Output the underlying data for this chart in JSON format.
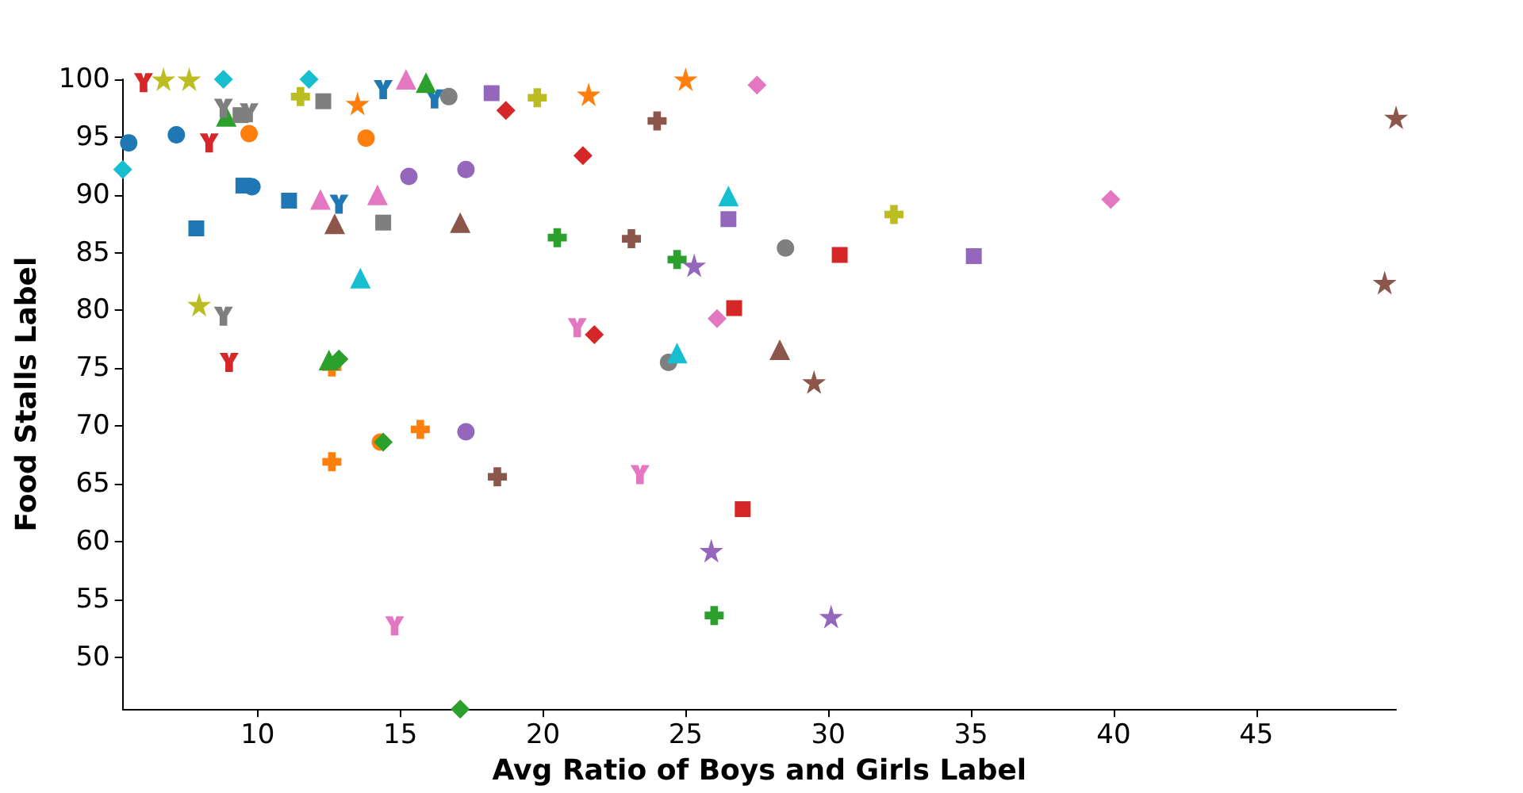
{
  "chart_data": {
    "type": "scatter",
    "xlabel": "Avg Ratio of Boys and Girls Label",
    "ylabel": "Food Stalls Label",
    "xlim": [
      5.27,
      49.9
    ],
    "ylim": [
      45.5,
      100
    ],
    "xticks": [
      10,
      15,
      20,
      25,
      30,
      35,
      40,
      45
    ],
    "yticks": [
      50,
      55,
      60,
      65,
      70,
      75,
      80,
      85,
      90,
      95,
      100
    ],
    "series": [
      {
        "color": "#1f77b4",
        "marker": "circle",
        "x": [
          5.48,
          7.15,
          9.8
        ],
        "values": [
          94.5,
          95.2,
          90.7
        ]
      },
      {
        "color": "#1f77b4",
        "marker": "square",
        "x": [
          7.85,
          9.5,
          11.1
        ],
        "values": [
          87.1,
          90.8,
          89.5
        ]
      },
      {
        "color": "#1f77b4",
        "x": [
          12.85,
          14.4,
          16.2
        ],
        "values": [
          89.2,
          99.1,
          98.3
        ]
      },
      {
        "color": "#ff7f0e",
        "marker": "circle",
        "x": [
          9.7,
          13.8,
          14.3
        ],
        "values": [
          95.3,
          94.9,
          68.6
        ]
      },
      {
        "color": "#ff7f0e",
        "marker": "star",
        "x": [
          13.5,
          21.6,
          25.0
        ],
        "values": [
          97.9,
          98.7,
          100
        ]
      },
      {
        "color": "#ff7f0e",
        "marker": "cross",
        "x": [
          12.6,
          15.7,
          12.6
        ],
        "values": [
          66.9,
          69.7,
          75.1
        ]
      },
      {
        "color": "#2ca02c",
        "marker": "triangle",
        "x": [
          8.9,
          12.5,
          15.9
        ],
        "values": [
          96.8,
          75.7,
          99.7
        ]
      },
      {
        "color": "#2ca02c",
        "marker": "diamond",
        "x": [
          12.85,
          14.4,
          17.1
        ],
        "values": [
          75.8,
          68.6,
          45.5
        ]
      },
      {
        "color": "#2ca02c",
        "marker": "cross",
        "x": [
          20.5,
          24.7,
          26.0
        ],
        "values": [
          86.3,
          84.4,
          53.6
        ]
      },
      {
        "color": "#d62728",
        "x": [
          6.0,
          8.3,
          9.0
        ],
        "values": [
          99.7,
          94.5,
          75.5
        ]
      },
      {
        "color": "#d62728",
        "marker": "diamond",
        "x": [
          18.7,
          21.4,
          21.8
        ],
        "values": [
          97.3,
          93.4,
          77.9
        ]
      },
      {
        "color": "#d62728",
        "marker": "square",
        "x": [
          30.4,
          26.7,
          27.0
        ],
        "values": [
          84.8,
          80.2,
          62.8
        ]
      },
      {
        "color": "#9467bd",
        "marker": "circle",
        "x": [
          15.3,
          17.3,
          17.3
        ],
        "values": [
          91.6,
          92.2,
          69.5
        ]
      },
      {
        "color": "#9467bd",
        "marker": "square",
        "x": [
          18.2,
          26.5,
          35.1
        ],
        "values": [
          98.8,
          87.9,
          84.7
        ]
      },
      {
        "color": "#9467bd",
        "marker": "star",
        "x": [
          25.3,
          25.9,
          30.1
        ],
        "values": [
          83.9,
          59.2,
          53.5
        ]
      },
      {
        "color": "#8c564b",
        "marker": "triangle",
        "x": [
          12.7,
          17.1,
          28.3
        ],
        "values": [
          87.5,
          87.6,
          76.6
        ]
      },
      {
        "color": "#8c564b",
        "marker": "cross",
        "x": [
          24.0,
          23.1,
          18.4
        ],
        "values": [
          96.4,
          86.2,
          65.6
        ]
      },
      {
        "color": "#8c564b",
        "marker": "star",
        "x": [
          49.9,
          49.5,
          29.5
        ],
        "values": [
          96.7,
          82.4,
          73.8
        ]
      },
      {
        "color": "#e377c2",
        "marker": "triangle",
        "x": [
          12.2,
          14.2,
          15.2
        ],
        "values": [
          89.6,
          90.0,
          100
        ]
      },
      {
        "color": "#e377c2",
        "marker": "diamond",
        "x": [
          27.5,
          26.1,
          39.9
        ],
        "values": [
          99.5,
          79.3,
          89.6
        ]
      },
      {
        "color": "#e377c2",
        "x": [
          21.2,
          23.4,
          14.8
        ],
        "values": [
          78.5,
          65.8,
          52.7
        ]
      },
      {
        "color": "#7f7f7f",
        "marker": "circle",
        "x": [
          16.7,
          24.4,
          28.5
        ],
        "values": [
          98.5,
          75.5,
          85.4
        ]
      },
      {
        "color": "#7f7f7f",
        "marker": "square",
        "x": [
          12.3,
          14.4,
          9.4
        ],
        "values": [
          98.1,
          87.6,
          96.9
        ]
      },
      {
        "color": "#7f7f7f",
        "x": [
          8.8,
          9.7,
          8.8
        ],
        "values": [
          97.5,
          97.1,
          79.5
        ]
      },
      {
        "color": "#bcbd22",
        "marker": "star",
        "x": [
          6.7,
          7.6,
          7.95
        ],
        "values": [
          100,
          100,
          80.5
        ]
      },
      {
        "color": "#bcbd22",
        "marker": "cross",
        "x": [
          11.5,
          19.8,
          32.3
        ],
        "values": [
          98.5,
          98.4,
          88.3
        ]
      },
      {
        "color": "#17becf",
        "marker": "diamond",
        "x": [
          5.27,
          8.8,
          11.8
        ],
        "values": [
          92.2,
          100,
          100
        ]
      },
      {
        "color": "#17becf",
        "marker": "triangle",
        "x": [
          13.6,
          26.5,
          24.7
        ],
        "values": [
          82.8,
          89.9,
          76.3
        ]
      }
    ]
  }
}
